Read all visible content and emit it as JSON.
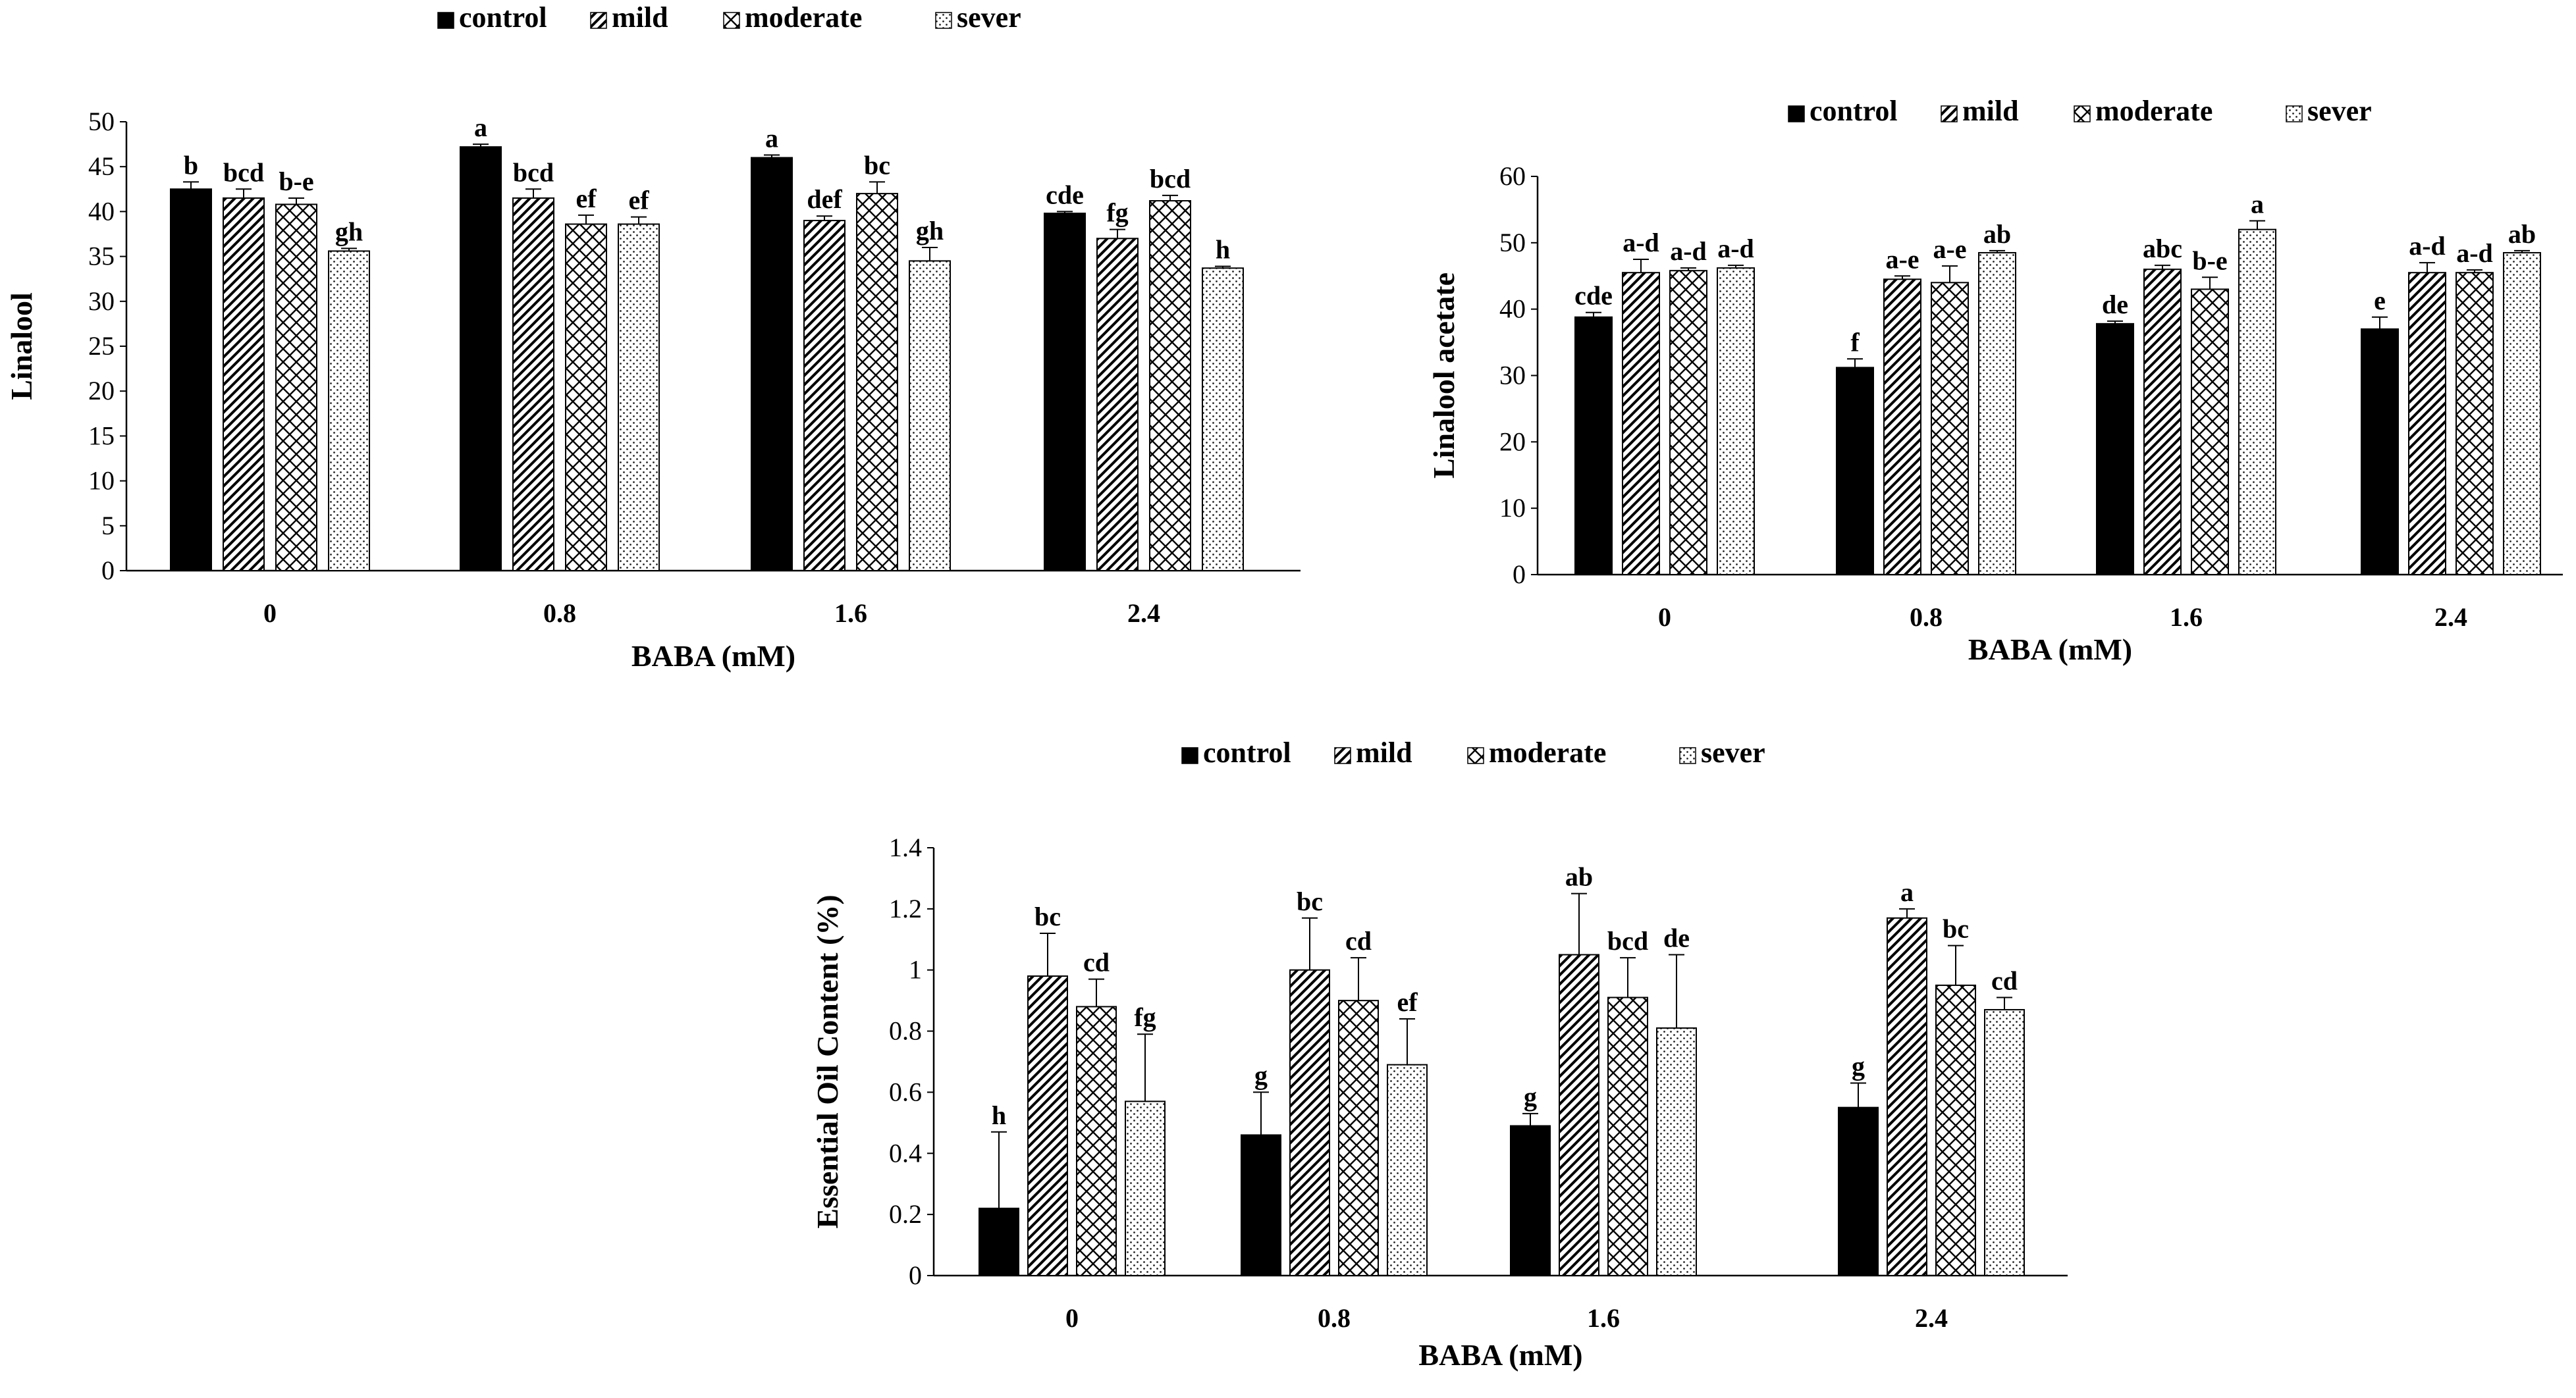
{
  "chart_data": [
    {
      "type": "bar",
      "title": "",
      "xlabel": "BABA (mM)",
      "ylabel": "Linalool",
      "categories": [
        "0",
        "0.8",
        "1.6",
        "2.4"
      ],
      "ylim": [
        0,
        50
      ],
      "yticks": [
        0,
        5,
        10,
        15,
        20,
        25,
        30,
        35,
        40,
        45,
        50
      ],
      "legend_position": "top",
      "series": [
        {
          "name": "control",
          "pattern": "solid",
          "values": [
            42.5,
            47.2,
            46.0,
            39.8
          ],
          "errors": [
            0.8,
            0.3,
            0.3,
            0.2
          ],
          "letters": [
            "b",
            "a",
            "a",
            "cde"
          ]
        },
        {
          "name": "mild",
          "pattern": "diagonal",
          "values": [
            41.5,
            41.5,
            39.0,
            37.0
          ],
          "errors": [
            1.0,
            1.0,
            0.5,
            1.0
          ],
          "letters": [
            "bcd",
            "bcd",
            "def",
            "fg"
          ]
        },
        {
          "name": "moderate",
          "pattern": "crosshatch",
          "values": [
            40.8,
            38.6,
            42.0,
            41.2
          ],
          "errors": [
            0.7,
            1.0,
            1.3,
            0.6
          ],
          "letters": [
            "b-e",
            "ef",
            "bc",
            "bcd"
          ]
        },
        {
          "name": "sever",
          "pattern": "dots",
          "values": [
            35.6,
            38.6,
            34.5,
            33.7
          ],
          "errors": [
            0.3,
            0.8,
            1.5,
            0.2
          ],
          "letters": [
            "gh",
            "ef",
            "gh",
            "h"
          ]
        }
      ]
    },
    {
      "type": "bar",
      "title": "",
      "xlabel": "BABA (mM)",
      "ylabel": "Linalool acetate",
      "categories": [
        "0",
        "0.8",
        "1.6",
        "2.4"
      ],
      "ylim": [
        0,
        60
      ],
      "yticks": [
        0,
        10,
        20,
        30,
        40,
        50,
        60
      ],
      "legend_position": "top",
      "series": [
        {
          "name": "control",
          "pattern": "solid",
          "values": [
            38.8,
            31.2,
            37.8,
            37.0
          ],
          "errors": [
            0.7,
            1.3,
            0.4,
            1.8
          ],
          "letters": [
            "cde",
            "f",
            "de",
            "e"
          ]
        },
        {
          "name": "mild",
          "pattern": "diagonal",
          "values": [
            45.5,
            44.5,
            46.0,
            45.5
          ],
          "errors": [
            2.0,
            0.5,
            0.6,
            1.5
          ],
          "letters": [
            "a-d",
            "a-e",
            "abc",
            "a-d"
          ]
        },
        {
          "name": "moderate",
          "pattern": "crosshatch",
          "values": [
            45.8,
            44.0,
            43.0,
            45.5
          ],
          "errors": [
            0.4,
            2.5,
            1.8,
            0.4
          ],
          "letters": [
            "a-d",
            "a-e",
            "b-e",
            "a-d"
          ]
        },
        {
          "name": "sever",
          "pattern": "dots",
          "values": [
            46.2,
            48.5,
            52.0,
            48.5
          ],
          "errors": [
            0.4,
            0.3,
            1.3,
            0.3
          ],
          "letters": [
            "a-d",
            "ab",
            "a",
            "ab"
          ]
        }
      ]
    },
    {
      "type": "bar",
      "title": "",
      "xlabel": "BABA (mM)",
      "ylabel": "Essential Oil Content (%)",
      "categories": [
        "0",
        "0.8",
        "1.6",
        "2.4"
      ],
      "ylim": [
        0,
        1.4
      ],
      "yticks": [
        0,
        0.2,
        0.4,
        0.6,
        0.8,
        1,
        1.2,
        1.4
      ],
      "legend_position": "top",
      "series": [
        {
          "name": "control",
          "pattern": "solid",
          "values": [
            0.22,
            0.46,
            0.49,
            0.55
          ],
          "errors": [
            0.25,
            0.14,
            0.04,
            0.08
          ],
          "letters": [
            "h",
            "g",
            "g",
            "g"
          ]
        },
        {
          "name": "mild",
          "pattern": "diagonal",
          "values": [
            0.98,
            1.0,
            1.05,
            1.17
          ],
          "errors": [
            0.14,
            0.17,
            0.2,
            0.03
          ],
          "letters": [
            "bc",
            "bc",
            "ab",
            "a"
          ]
        },
        {
          "name": "moderate",
          "pattern": "crosshatch",
          "values": [
            0.88,
            0.9,
            0.91,
            0.95
          ],
          "errors": [
            0.09,
            0.14,
            0.13,
            0.13
          ],
          "letters": [
            "cd",
            "cd",
            "bcd",
            "bc"
          ]
        },
        {
          "name": "sever",
          "pattern": "dots",
          "values": [
            0.57,
            0.69,
            0.81,
            0.87
          ],
          "errors": [
            0.22,
            0.15,
            0.24,
            0.04
          ],
          "letters": [
            "fg",
            "ef",
            "de",
            "cd"
          ]
        }
      ]
    }
  ]
}
